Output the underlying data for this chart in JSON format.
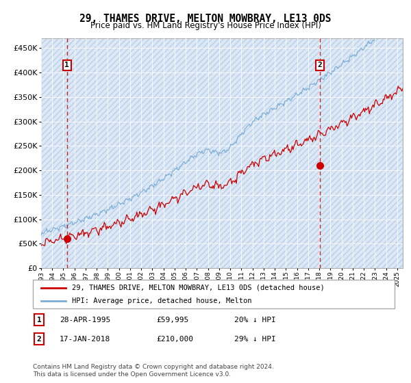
{
  "title": "29, THAMES DRIVE, MELTON MOWBRAY, LE13 0DS",
  "subtitle": "Price paid vs. HM Land Registry's House Price Index (HPI)",
  "legend_line1": "29, THAMES DRIVE, MELTON MOWBRAY, LE13 0DS (detached house)",
  "legend_line2": "HPI: Average price, detached house, Melton",
  "annotation1_label": "1",
  "annotation1_date": "28-APR-1995",
  "annotation1_price": "£59,995",
  "annotation1_hpi": "20% ↓ HPI",
  "annotation2_label": "2",
  "annotation2_date": "17-JAN-2018",
  "annotation2_price": "£210,000",
  "annotation2_hpi": "29% ↓ HPI",
  "footnote": "Contains HM Land Registry data © Crown copyright and database right 2024.\nThis data is licensed under the Open Government Licence v3.0.",
  "price_color": "#cc0000",
  "hpi_color": "#7aadd4",
  "annotation_color": "#cc0000",
  "ylim": [
    0,
    470000
  ],
  "yticks": [
    0,
    50000,
    100000,
    150000,
    200000,
    250000,
    300000,
    350000,
    400000,
    450000
  ],
  "sale1_year": 1995.32,
  "sale1_price": 59995,
  "sale2_year": 2018.05,
  "sale2_price": 210000,
  "xmin": 1993,
  "xmax": 2025.5
}
